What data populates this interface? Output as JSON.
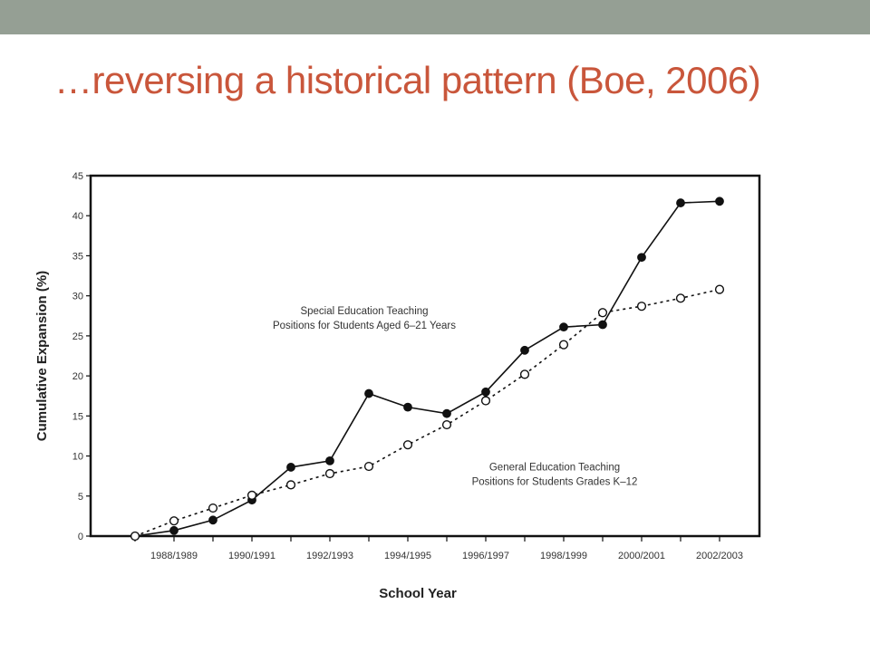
{
  "slide": {
    "title": "…reversing a historical pattern (Boe, 2006)",
    "top_bar_color": "#959f94",
    "title_color": "#c9563b"
  },
  "chart_data": {
    "type": "line",
    "xlabel": "School Year",
    "ylabel": "Cumulative Expansion (%)",
    "ylim": [
      0,
      45
    ],
    "yticks": [
      0,
      5,
      10,
      15,
      20,
      25,
      30,
      35,
      40,
      45
    ],
    "x": [
      "1987/1988",
      "1988/1989",
      "1989/1990",
      "1990/1991",
      "1991/1992",
      "1992/1993",
      "1993/1994",
      "1994/1995",
      "1995/1996",
      "1996/1997",
      "1997/1998",
      "1998/1999",
      "1999/2000",
      "2000/2001",
      "2001/2002",
      "2002/2003"
    ],
    "x_tick_labels": [
      "",
      "1988/1989",
      "",
      "1990/1991",
      "",
      "1992/1993",
      "",
      "1994/1995",
      "",
      "1996/1997",
      "",
      "1998/1999",
      "",
      "2000/2001",
      "",
      "2002/2003"
    ],
    "grid": false,
    "series": [
      {
        "name": "Special Education Teaching Positions for Students Aged 6–21 Years",
        "label_lines": [
          "Special Education Teaching",
          "Positions for Students Aged 6–21 Years"
        ],
        "marker": "filled-circle",
        "line": "solid",
        "values": [
          0,
          0.7,
          2.0,
          4.5,
          8.6,
          9.4,
          17.8,
          16.1,
          15.3,
          18.0,
          23.2,
          26.1,
          26.4,
          34.8,
          41.6,
          41.8
        ]
      },
      {
        "name": "General Education Teaching Positions for Students Grades K–12",
        "label_lines": [
          "General Education Teaching",
          "Positions for Students Grades K–12"
        ],
        "marker": "open-circle",
        "line": "dotted",
        "values": [
          0,
          1.9,
          3.5,
          5.1,
          6.4,
          7.8,
          8.7,
          11.4,
          13.9,
          16.9,
          20.2,
          23.9,
          27.9,
          28.7,
          29.7,
          30.8
        ]
      }
    ]
  }
}
